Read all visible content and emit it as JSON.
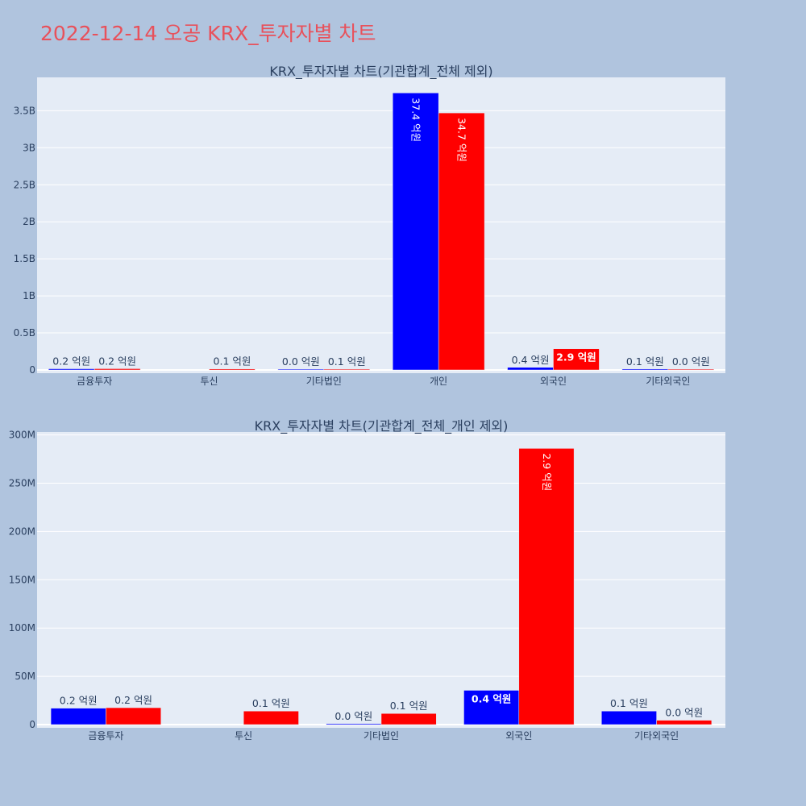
{
  "page_title": "2022-12-14 오공 KRX_투자자별 차트",
  "colors": {
    "buy": "#0000ff",
    "sell": "#ff0000",
    "plot_bg": "#e5ecf6",
    "page_bg": "#b0c4de",
    "title": "#e8515b"
  },
  "chart_data": [
    {
      "type": "bar",
      "title": "KRX_투자자별 차트(기관합계_전체 제외)",
      "categories": [
        "금융투자",
        "투신",
        "기타법인",
        "개인",
        "외국인",
        "기타외국인"
      ],
      "ylim": [
        0,
        3950000000
      ],
      "yticks": [
        0,
        500000000,
        1000000000,
        1500000000,
        2000000000,
        2500000000,
        3000000000,
        3500000000
      ],
      "ytick_labels": [
        "0",
        "0.5B",
        "1B",
        "1.5B",
        "2B",
        "2.5B",
        "3B",
        "3.5B"
      ],
      "series": [
        {
          "color": "#0000ff",
          "values": [
            16000000,
            0,
            1000000,
            3740000000,
            35000000,
            13000000
          ],
          "labels": [
            "0.2 억원",
            "",
            "0.0 억원",
            "37.4 억원",
            "0.4 억원",
            "0.1 억원"
          ]
        },
        {
          "color": "#ff0000",
          "values": [
            17000000,
            14000000,
            11000000,
            3470000000,
            286000000,
            4000000
          ],
          "labels": [
            "0.2 억원",
            "0.1 억원",
            "0.1 억원",
            "34.7 억원",
            "2.9 억원",
            "0.0 억원"
          ]
        }
      ],
      "grid": true
    },
    {
      "type": "bar",
      "title": "KRX_투자자별 차트(기관합계_전체_개인 제외)",
      "categories": [
        "금융투자",
        "투신",
        "기타법인",
        "외국인",
        "기타외국인"
      ],
      "ylim": [
        0,
        303000000
      ],
      "yticks": [
        0,
        50000000,
        100000000,
        150000000,
        200000000,
        250000000,
        300000000
      ],
      "ytick_labels": [
        "0",
        "50M",
        "100M",
        "150M",
        "200M",
        "250M",
        "300M"
      ],
      "series": [
        {
          "color": "#0000ff",
          "values": [
            17000000,
            0,
            1000000,
            35500000,
            14000000
          ],
          "labels": [
            "0.2 억원",
            "",
            "0.0 억원",
            "0.4 억원",
            "0.1 억원"
          ]
        },
        {
          "color": "#ff0000",
          "values": [
            17500000,
            14000000,
            11500000,
            286000000,
            4500000
          ],
          "labels": [
            "0.2 억원",
            "0.1 억원",
            "0.1 억원",
            "2.9 억원",
            "0.0 억원"
          ]
        }
      ],
      "grid": true
    }
  ]
}
